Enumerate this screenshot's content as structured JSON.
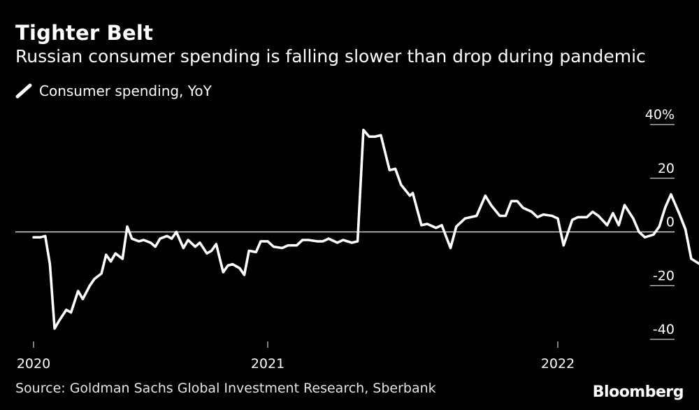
{
  "title": "Tighter Belt",
  "subtitle": "Russian consumer spending is falling slower than drop during pandemic",
  "source": "Source: Goldman Sachs Global Investment Research, Sberbank",
  "brand": "Bloomberg",
  "colors": {
    "background": "#000000",
    "line": "#ffffff",
    "text": "#ffffff"
  },
  "chart_data": {
    "type": "line",
    "title": "Tighter Belt",
    "subtitle": "Russian consumer spending is falling slower than drop during pandemic",
    "xlabel": "",
    "ylabel": "",
    "ylim": [
      -40,
      40
    ],
    "yticks": [
      40,
      20,
      0,
      -20,
      -40
    ],
    "ytick_labels": [
      "40%",
      "20",
      "0",
      "-20",
      "-40"
    ],
    "xlim": [
      2020.0,
      2022.4
    ],
    "xticks": [
      2020.0,
      2021.0,
      2022.0
    ],
    "xtick_labels": [
      "2020",
      "2021",
      "2022"
    ],
    "legend": "top-left",
    "series": [
      {
        "name": "Consumer spending, YoY",
        "points": [
          [
            2020.0,
            -2
          ],
          [
            2020.03,
            -2
          ],
          [
            2020.05,
            -1.5
          ],
          [
            2020.07,
            -12
          ],
          [
            2020.09,
            -36
          ],
          [
            2020.11,
            -33
          ],
          [
            2020.14,
            -29
          ],
          [
            2020.16,
            -30
          ],
          [
            2020.19,
            -22
          ],
          [
            2020.21,
            -25
          ],
          [
            2020.24,
            -20
          ],
          [
            2020.26,
            -17.5
          ],
          [
            2020.29,
            -15.5
          ],
          [
            2020.31,
            -8.5
          ],
          [
            2020.33,
            -11
          ],
          [
            2020.35,
            -8
          ],
          [
            2020.38,
            -10
          ],
          [
            2020.4,
            2
          ],
          [
            2020.42,
            -2.5
          ],
          [
            2020.45,
            -3.5
          ],
          [
            2020.47,
            -3
          ],
          [
            2020.5,
            -4
          ],
          [
            2020.52,
            -5.5
          ],
          [
            2020.54,
            -2.5
          ],
          [
            2020.57,
            -1.5
          ],
          [
            2020.59,
            -2.5
          ],
          [
            2020.61,
            0
          ],
          [
            2020.64,
            -6
          ],
          [
            2020.66,
            -3
          ],
          [
            2020.69,
            -5.5
          ],
          [
            2020.71,
            -4
          ],
          [
            2020.74,
            -8
          ],
          [
            2020.76,
            -7
          ],
          [
            2020.78,
            -4.5
          ],
          [
            2020.81,
            -15
          ],
          [
            2020.83,
            -12.5
          ],
          [
            2020.85,
            -12
          ],
          [
            2020.88,
            -13.5
          ],
          [
            2020.9,
            -16
          ],
          [
            2020.92,
            -7
          ],
          [
            2020.95,
            -7.5
          ],
          [
            2020.97,
            -3.5
          ],
          [
            2021.0,
            -3.5
          ],
          [
            2021.02,
            -5.5
          ],
          [
            2021.05,
            -6
          ],
          [
            2021.07,
            -5
          ],
          [
            2021.1,
            -5
          ],
          [
            2021.12,
            -3
          ],
          [
            2021.14,
            -3
          ],
          [
            2021.17,
            -3.5
          ],
          [
            2021.19,
            -3.5
          ],
          [
            2021.21,
            -2.5
          ],
          [
            2021.24,
            -4
          ],
          [
            2021.26,
            -3
          ],
          [
            2021.29,
            -4
          ],
          [
            2021.31,
            -3.5
          ],
          [
            2021.33,
            38
          ],
          [
            2021.35,
            35.5
          ],
          [
            2021.37,
            35.5
          ],
          [
            2021.39,
            36
          ],
          [
            2021.42,
            23
          ],
          [
            2021.44,
            23.5
          ],
          [
            2021.46,
            17.5
          ],
          [
            2021.49,
            13.5
          ],
          [
            2021.5,
            14.5
          ],
          [
            2021.53,
            2.5
          ],
          [
            2021.55,
            3
          ],
          [
            2021.58,
            1.5
          ],
          [
            2021.6,
            2.5
          ],
          [
            2021.63,
            -6
          ],
          [
            2021.65,
            2
          ],
          [
            2021.68,
            5
          ],
          [
            2021.7,
            5.5
          ],
          [
            2021.72,
            6
          ],
          [
            2021.75,
            13.5
          ],
          [
            2021.77,
            10
          ],
          [
            2021.8,
            6
          ],
          [
            2021.82,
            6
          ],
          [
            2021.84,
            11.5
          ],
          [
            2021.86,
            11.5
          ],
          [
            2021.88,
            9
          ],
          [
            2021.91,
            7.5
          ],
          [
            2021.93,
            5.5
          ],
          [
            2021.95,
            6.5
          ],
          [
            2021.98,
            6
          ],
          [
            2022.0,
            5
          ],
          [
            2022.02,
            -5
          ],
          [
            2022.05,
            4.5
          ],
          [
            2022.07,
            5.5
          ],
          [
            2022.1,
            5.5
          ],
          [
            2022.12,
            7.5
          ],
          [
            2022.14,
            6
          ],
          [
            2022.17,
            2.5
          ],
          [
            2022.19,
            7
          ],
          [
            2022.21,
            2.5
          ],
          [
            2022.23,
            10
          ],
          [
            2022.26,
            5
          ],
          [
            2022.28,
            0
          ],
          [
            2022.3,
            -2
          ],
          [
            2022.33,
            -1
          ],
          [
            2022.35,
            2
          ],
          [
            2022.37,
            9
          ],
          [
            2022.39,
            14
          ],
          [
            2022.42,
            6.5
          ],
          [
            2022.44,
            1
          ],
          [
            2022.46,
            -10
          ],
          [
            2022.49,
            -12
          ]
        ]
      }
    ]
  }
}
